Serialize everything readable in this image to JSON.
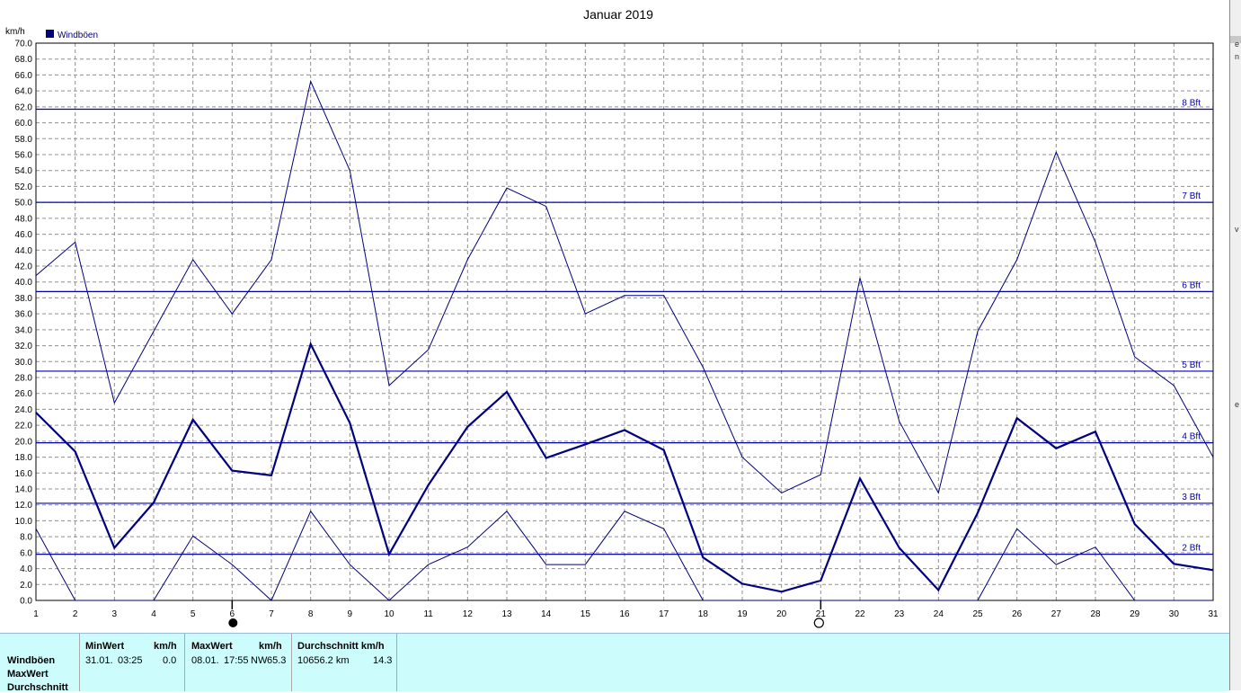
{
  "chart_data": {
    "type": "line",
    "title": "Januar 2019",
    "ylabel": "km/h",
    "xlabel": "",
    "x": [
      1,
      2,
      3,
      4,
      5,
      6,
      7,
      8,
      9,
      10,
      11,
      12,
      13,
      14,
      15,
      16,
      17,
      18,
      19,
      20,
      21,
      22,
      23,
      24,
      25,
      26,
      27,
      28,
      29,
      30,
      31
    ],
    "ylim": [
      0,
      70
    ],
    "ytick_step": 2,
    "grid": true,
    "legend_position": "top-left",
    "legend": [
      "Windböen"
    ],
    "series": [
      {
        "name": "Windböen",
        "role": "max",
        "values": [
          40.8,
          45.0,
          24.8,
          33.8,
          42.8,
          36.0,
          42.8,
          65.2,
          54.0,
          27.0,
          31.5,
          42.8,
          51.8,
          49.5,
          36.0,
          38.3,
          38.3,
          29.3,
          18.0,
          13.5,
          15.8,
          40.5,
          22.5,
          13.5,
          33.8,
          42.8,
          56.3,
          45.0,
          30.6,
          27.0,
          18.0
        ]
      },
      {
        "name": "Windböen",
        "role": "mean",
        "values": [
          23.6,
          18.7,
          6.6,
          12.3,
          22.7,
          16.3,
          15.7,
          32.2,
          22.3,
          5.8,
          14.5,
          21.8,
          26.2,
          17.9,
          19.6,
          21.4,
          18.9,
          5.4,
          2.1,
          1.1,
          2.5,
          15.3,
          6.6,
          1.3,
          11.0,
          22.9,
          19.1,
          21.2,
          9.6,
          4.6,
          3.8
        ]
      },
      {
        "name": "Windböen",
        "role": "min",
        "values": [
          9.0,
          0.0,
          0.0,
          0.0,
          8.1,
          4.5,
          0.0,
          11.2,
          4.5,
          0.0,
          4.5,
          6.7,
          11.2,
          4.5,
          4.5,
          11.2,
          9.0,
          0.0,
          0.0,
          0.0,
          0.0,
          0.0,
          0.0,
          0.0,
          0.0,
          9.0,
          4.5,
          6.7,
          0.0,
          0.0,
          0.0
        ]
      }
    ],
    "reference_lines": [
      {
        "label": "2 Bft",
        "value": 5.8
      },
      {
        "label": "3 Bft",
        "value": 12.2
      },
      {
        "label": "4 Bft",
        "value": 19.8
      },
      {
        "label": "5 Bft",
        "value": 28.8
      },
      {
        "label": "6 Bft",
        "value": 38.8
      },
      {
        "label": "7 Bft",
        "value": 50.0
      },
      {
        "label": "8 Bft",
        "value": 61.7
      }
    ],
    "moon_phases": [
      {
        "day": 6,
        "phase": "new"
      },
      {
        "day": 21,
        "phase": "full"
      }
    ],
    "colors": {
      "series": "#000080",
      "reference": "#0000b0",
      "grid": "#909090",
      "axis": "#000000"
    }
  },
  "stats_panel": {
    "row_labels": [
      "Windböen",
      "MaxWert",
      "Durchschnitt"
    ],
    "min": {
      "header": "MinWert",
      "unit": "km/h",
      "date": "31.01.",
      "time": "03:25",
      "value": "0.0"
    },
    "max": {
      "header": "MaxWert",
      "unit": "km/h",
      "date": "08.01.",
      "time": "17:55",
      "dir": "NW",
      "value": "65.3"
    },
    "avg": {
      "header": "Durchschnitt km/h",
      "distance": "10656.2 km",
      "value": "14.3"
    }
  },
  "right_strip": {
    "chars": [
      "e",
      "n",
      "v",
      "e"
    ]
  }
}
